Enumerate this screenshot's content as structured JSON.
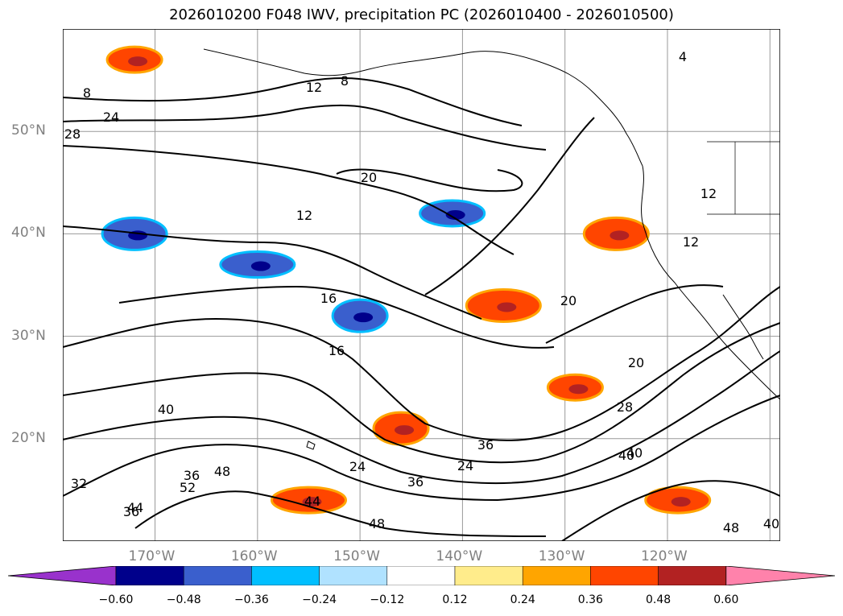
{
  "title": "2026010200 F048 IWV, precipitation PC (2026010400 - 2026010500)",
  "chart_data": {
    "type": "contour-map",
    "title": "2026010200 F048 IWV, precipitation PC (2026010400 - 2026010500)",
    "lon_range": [
      -179.0,
      -109.0
    ],
    "lat_range": [
      10.0,
      60.0
    ],
    "grid": true,
    "y_ticks": [
      "50°N",
      "40°N",
      "30°N",
      "20°N"
    ],
    "x_ticks": [
      "170°W",
      "160°W",
      "150°W",
      "140°W",
      "130°W",
      "120°W"
    ],
    "iwv_contour_labels": [
      "4",
      "8",
      "8",
      "12",
      "12",
      "12",
      "12",
      "16",
      "16",
      "20",
      "20",
      "20",
      "24",
      "24",
      "24",
      "28",
      "28",
      "32",
      "36",
      "36",
      "36",
      "36",
      "40",
      "40",
      "40",
      "40",
      "44",
      "44",
      "48",
      "48",
      "48",
      "52"
    ],
    "colorbar": {
      "ticks": [
        "−0.60",
        "−0.48",
        "−0.36",
        "−0.24",
        "−0.12",
        "0.12",
        "0.24",
        "0.36",
        "0.48",
        "0.60"
      ],
      "colors": [
        "#9932cc",
        "#00008b",
        "#3a5fcd",
        "#00bfff",
        "#b0e2ff",
        "#ffffff",
        "#ffec8b",
        "#ffa500",
        "#ff4500",
        "#b22222",
        "#ff82ab"
      ]
    },
    "precip_regions": [
      {
        "sign": "positive",
        "lon": -172,
        "lat": 57
      },
      {
        "sign": "negative",
        "lon": -172,
        "lat": 40
      },
      {
        "sign": "negative",
        "lon": -160,
        "lat": 37
      },
      {
        "sign": "negative",
        "lon": -150,
        "lat": 32
      },
      {
        "sign": "negative",
        "lon": -141,
        "lat": 42
      },
      {
        "sign": "positive",
        "lon": -136,
        "lat": 33
      },
      {
        "sign": "positive",
        "lon": -129,
        "lat": 25
      },
      {
        "sign": "positive",
        "lon": -125,
        "lat": 40
      },
      {
        "sign": "positive",
        "lon": -155,
        "lat": 14
      },
      {
        "sign": "positive",
        "lon": -146,
        "lat": 21
      },
      {
        "sign": "positive",
        "lon": -119,
        "lat": 14
      }
    ]
  }
}
